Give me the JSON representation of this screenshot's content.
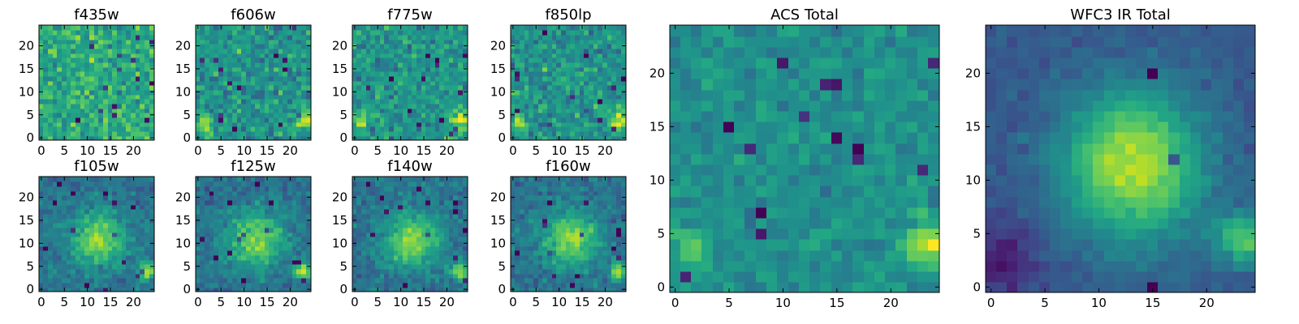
{
  "chart_data": [
    {
      "type": "heatmap",
      "title": "f435w",
      "colormap": "viridis",
      "pattern": "noise",
      "x_ticks": [
        "0",
        "5",
        "10",
        "15",
        "20"
      ],
      "y_ticks": [
        "0",
        "5",
        "10",
        "15",
        "20"
      ],
      "xlim": [
        -0.5,
        24.5
      ],
      "ylim": [
        -0.5,
        24.5
      ]
    },
    {
      "type": "heatmap",
      "title": "f606w",
      "colormap": "viridis",
      "pattern": "noise_sources",
      "x_ticks": [
        "0",
        "5",
        "10",
        "15",
        "20"
      ],
      "y_ticks": [
        "0",
        "5",
        "10",
        "15",
        "20"
      ],
      "xlim": [
        -0.5,
        24.5
      ],
      "ylim": [
        -0.5,
        24.5
      ]
    },
    {
      "type": "heatmap",
      "title": "f775w",
      "colormap": "viridis",
      "pattern": "noise_sources",
      "x_ticks": [
        "0",
        "5",
        "10",
        "15",
        "20"
      ],
      "y_ticks": [
        "0",
        "5",
        "10",
        "15",
        "20"
      ],
      "xlim": [
        -0.5,
        24.5
      ],
      "ylim": [
        -0.5,
        24.5
      ]
    },
    {
      "type": "heatmap",
      "title": "f850lp",
      "colormap": "viridis",
      "pattern": "noise_sources",
      "x_ticks": [
        "0",
        "5",
        "10",
        "15",
        "20"
      ],
      "y_ticks": [
        "0",
        "5",
        "10",
        "15",
        "20"
      ],
      "xlim": [
        -0.5,
        24.5
      ],
      "ylim": [
        -0.5,
        24.5
      ]
    },
    {
      "type": "heatmap",
      "title": "f105w",
      "colormap": "viridis",
      "pattern": "galaxy",
      "x_ticks": [
        "0",
        "5",
        "10",
        "15",
        "20"
      ],
      "y_ticks": [
        "0",
        "5",
        "10",
        "15",
        "20"
      ],
      "xlim": [
        -0.5,
        24.5
      ],
      "ylim": [
        -0.5,
        24.5
      ]
    },
    {
      "type": "heatmap",
      "title": "f125w",
      "colormap": "viridis",
      "pattern": "galaxy",
      "x_ticks": [
        "0",
        "5",
        "10",
        "15",
        "20"
      ],
      "y_ticks": [
        "0",
        "5",
        "10",
        "15",
        "20"
      ],
      "xlim": [
        -0.5,
        24.5
      ],
      "ylim": [
        -0.5,
        24.5
      ]
    },
    {
      "type": "heatmap",
      "title": "f140w",
      "colormap": "viridis",
      "pattern": "galaxy",
      "x_ticks": [
        "0",
        "5",
        "10",
        "15",
        "20"
      ],
      "y_ticks": [
        "0",
        "5",
        "10",
        "15",
        "20"
      ],
      "xlim": [
        -0.5,
        24.5
      ],
      "ylim": [
        -0.5,
        24.5
      ]
    },
    {
      "type": "heatmap",
      "title": "f160w",
      "colormap": "viridis",
      "pattern": "galaxy",
      "x_ticks": [
        "0",
        "5",
        "10",
        "15",
        "20"
      ],
      "y_ticks": [
        "0",
        "5",
        "10",
        "15",
        "20"
      ],
      "xlim": [
        -0.5,
        24.5
      ],
      "ylim": [
        -0.5,
        24.5
      ]
    },
    {
      "type": "heatmap",
      "title": "ACS Total",
      "colormap": "viridis",
      "pattern": "acs_total",
      "x_ticks": [
        "0",
        "5",
        "10",
        "15",
        "20"
      ],
      "y_ticks": [
        "0",
        "5",
        "10",
        "15",
        "20"
      ],
      "xlim": [
        -0.5,
        24.5
      ],
      "ylim": [
        -0.5,
        24.5
      ]
    },
    {
      "type": "heatmap",
      "title": "WFC3 IR Total",
      "colormap": "viridis",
      "pattern": "ir_total",
      "x_ticks": [
        "0",
        "5",
        "10",
        "15",
        "20"
      ],
      "y_ticks": [
        "0",
        "5",
        "10",
        "15",
        "20"
      ],
      "xlim": [
        -0.5,
        24.5
      ],
      "ylim": [
        -0.5,
        24.5
      ]
    }
  ]
}
